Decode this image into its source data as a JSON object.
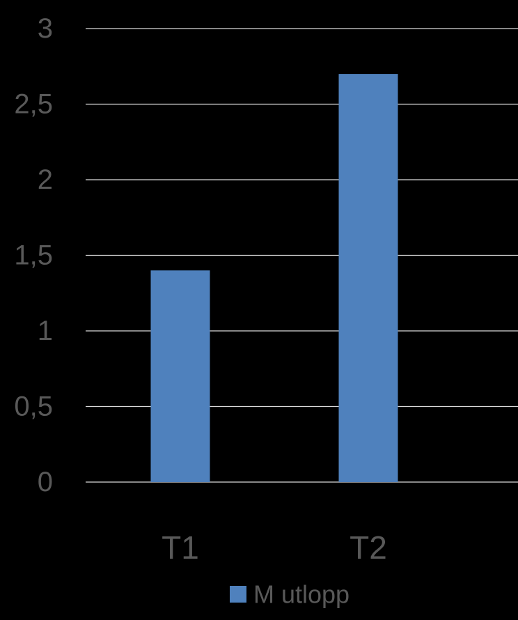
{
  "chart_data": {
    "type": "bar",
    "categories": [
      "T1",
      "T2"
    ],
    "series": [
      {
        "name": "M utlopp",
        "values": [
          1.4,
          2.7
        ],
        "color": "#4F81BD"
      }
    ],
    "ylim": [
      0,
      3
    ],
    "yticks": [
      0,
      0.5,
      1,
      1.5,
      2,
      2.5,
      3
    ],
    "ytick_labels": [
      "0",
      "0,5",
      "1",
      "1,5",
      "2",
      "2,5",
      "3"
    ],
    "grid": true,
    "legend_position": "bottom",
    "background_color": "#000000",
    "gridline_color": "#D9D9D9",
    "text_color": "#595959"
  }
}
